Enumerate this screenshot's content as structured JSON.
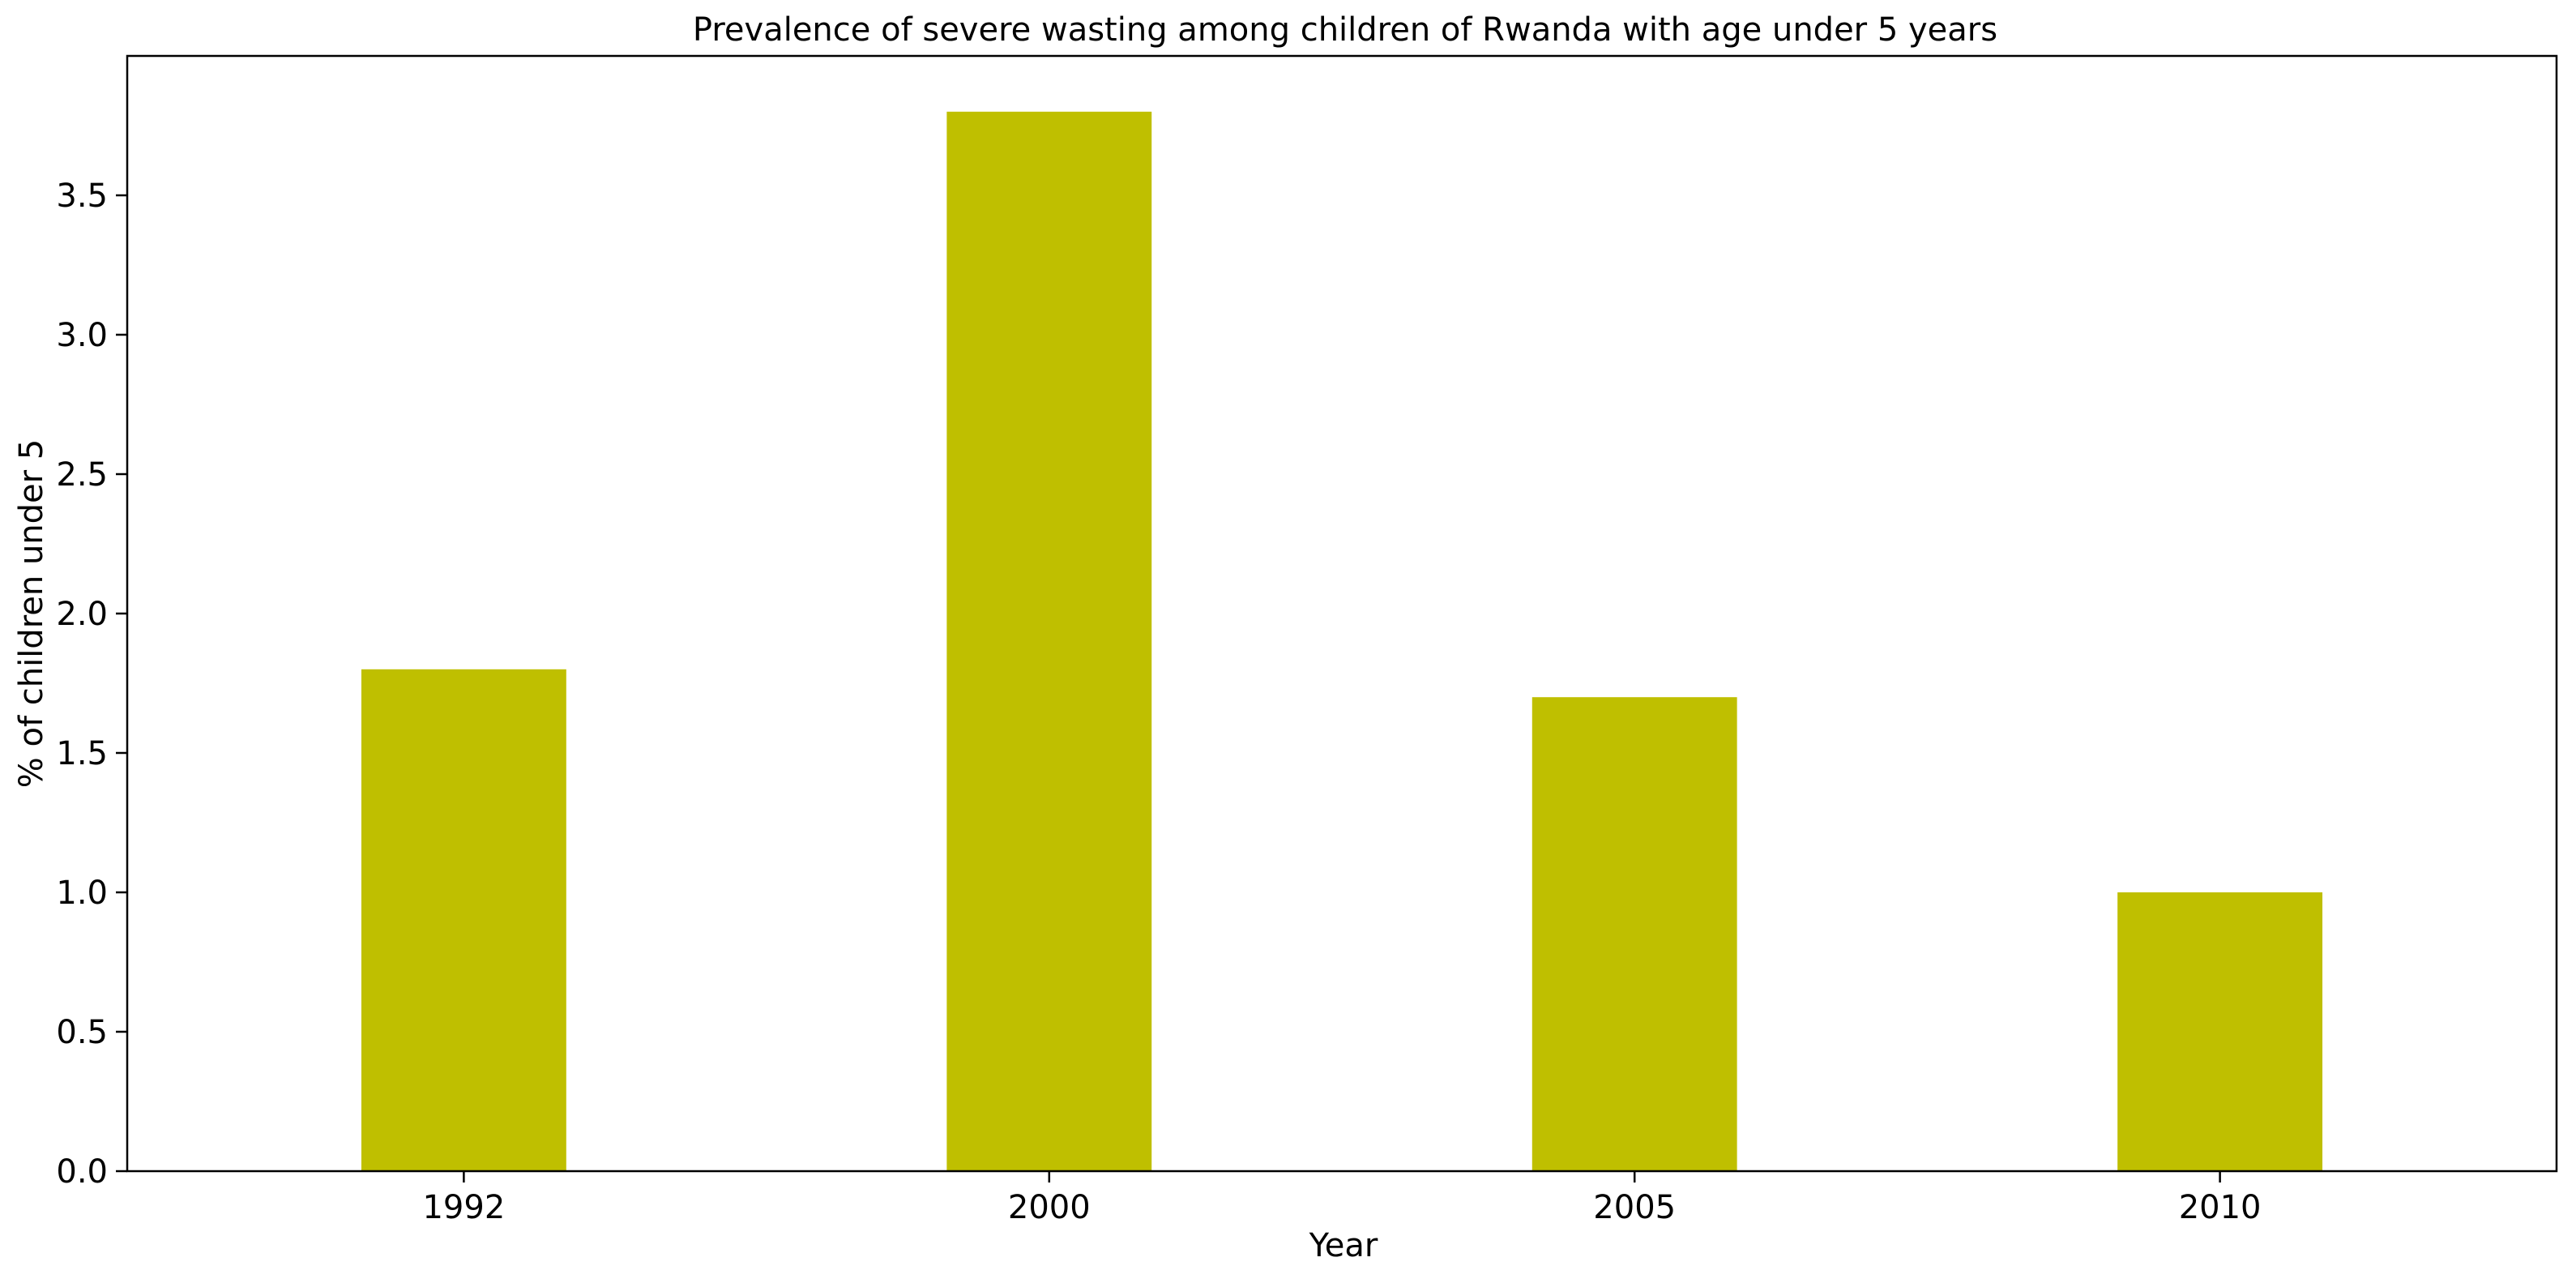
{
  "chart_data": {
    "type": "bar",
    "title": "Prevalence of severe wasting among children of Rwanda with age under 5 years",
    "xlabel": "Year",
    "ylabel": "% of children under 5",
    "categories": [
      "1992",
      "2000",
      "2005",
      "2010"
    ],
    "values": [
      1.8,
      3.8,
      1.7,
      1.0
    ],
    "ylim": [
      0,
      4.0
    ],
    "yticks": [
      0.0,
      0.5,
      1.0,
      1.5,
      2.0,
      2.5,
      3.0,
      3.5
    ],
    "ytick_labels": [
      "0.0",
      "0.5",
      "1.0",
      "1.5",
      "2.0",
      "2.5",
      "3.0",
      "3.5"
    ],
    "grid": false,
    "legend": "none",
    "bar_color": "#bfbf00"
  }
}
